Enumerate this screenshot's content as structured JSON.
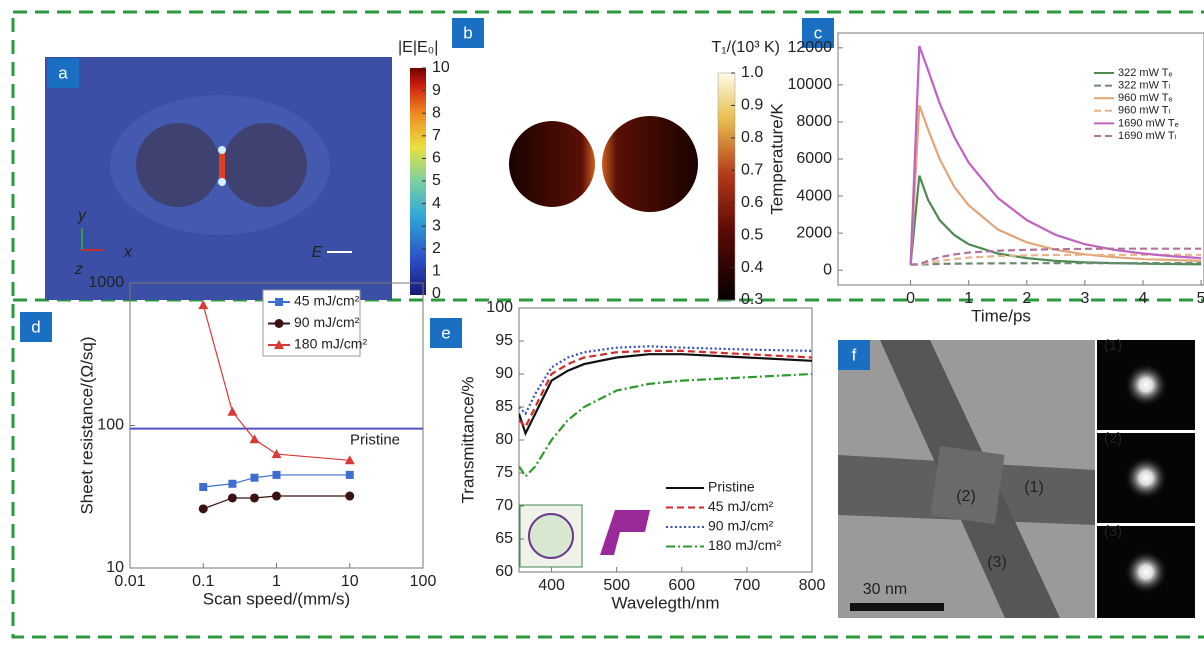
{
  "panels": {
    "a": {
      "label": "a",
      "colorbar": {
        "title": "|E|E₀|",
        "lim": [
          0,
          10
        ],
        "ticks": [
          0,
          1,
          2,
          3,
          4,
          5,
          6,
          7,
          8,
          9,
          10
        ]
      },
      "axes": [
        "y",
        "x",
        "z"
      ],
      "field": "E"
    },
    "b": {
      "label": "b",
      "colorbar": {
        "title": "T₁/(10³ K)",
        "lim": [
          0.3,
          1
        ],
        "ticks": [
          0.3,
          0.4,
          0.5,
          0.6,
          0.7,
          0.8,
          0.9,
          {
            "value": 1,
            "label": "1.0"
          }
        ]
      }
    },
    "f": {
      "label": "f",
      "annotations": [
        "(2)",
        "(1)",
        "(3)"
      ],
      "scale_bar": "30 nm",
      "diffraction_labels": [
        "(1)",
        "(2)",
        "(3)"
      ]
    }
  },
  "chart_data": [
    {
      "type": "line",
      "panel": "c",
      "xlabel": "Time/ps",
      "ylabel": "Temperature/K",
      "x": [
        0,
        0.15,
        0.3,
        0.5,
        0.75,
        1,
        1.5,
        2,
        2.5,
        3,
        3.5,
        4,
        4.5,
        5
      ],
      "xlim": [
        -1.25,
        5.05
      ],
      "ylim": [
        -800,
        12800
      ],
      "xticks": [
        0,
        1,
        2,
        3,
        4,
        5
      ],
      "yticks": [
        0,
        2000,
        4000,
        6000,
        8000,
        10000,
        12000
      ],
      "legend": "upper right",
      "series": [
        {
          "name": "322 mW Tₑ",
          "color": "#4d8a52",
          "dash": "solid",
          "values": [
            300,
            5100,
            3800,
            2700,
            1900,
            1400,
            900,
            650,
            500,
            420,
            380,
            350,
            330,
            320
          ]
        },
        {
          "name": "322 mW Tₗ",
          "color": "#6f8a73",
          "dash": "dashed",
          "values": [
            300,
            300,
            320,
            340,
            350,
            360,
            370,
            375,
            380,
            380,
            380,
            380,
            380,
            380
          ]
        },
        {
          "name": "960 mW Tₑ",
          "color": "#e2a577",
          "dash": "solid",
          "values": [
            300,
            8900,
            7600,
            6000,
            4500,
            3500,
            2200,
            1500,
            1100,
            850,
            700,
            600,
            550,
            500
          ]
        },
        {
          "name": "960 mW Tₗ",
          "color": "#e6b48c",
          "dash": "dashed",
          "values": [
            300,
            310,
            400,
            500,
            600,
            680,
            760,
            800,
            820,
            830,
            830,
            830,
            830,
            830
          ]
        },
        {
          "name": "1690 mW Tₑ",
          "color": "#c062c0",
          "dash": "solid",
          "values": [
            300,
            12100,
            10800,
            9000,
            7200,
            5800,
            3900,
            2700,
            1900,
            1400,
            1100,
            900,
            750,
            650
          ]
        },
        {
          "name": "1690 mW Tₗ",
          "color": "#b0739a",
          "dash": "dashed",
          "values": [
            300,
            330,
            500,
            700,
            850,
            950,
            1050,
            1100,
            1130,
            1150,
            1160,
            1160,
            1160,
            1160
          ]
        }
      ]
    },
    {
      "type": "line",
      "panel": "d",
      "xlabel": "Scan speed/(mm/s)",
      "ylabel": "Sheet resistance/(Ω/sq)",
      "log_x": true,
      "log_y": true,
      "x": [
        0.1,
        0.25,
        0.5,
        1,
        10
      ],
      "xlim": [
        0.01,
        100
      ],
      "ylim": [
        10,
        1000
      ],
      "xticks": [
        0.01,
        0.1,
        1,
        10,
        100
      ],
      "yticks": [
        10,
        100,
        1000
      ],
      "legend": "upper right",
      "reference_line": {
        "value": 95,
        "label": "Pristine",
        "color": "#5252c8"
      },
      "series": [
        {
          "name": "45 mJ/cm²",
          "color": "#3d6fd0",
          "marker": "square",
          "dash": "solid",
          "values": [
            37,
            39,
            43,
            45,
            45
          ]
        },
        {
          "name": "90 mJ/cm²",
          "color": "#3a1212",
          "marker": "circle",
          "dash": "solid",
          "values": [
            26,
            31,
            31,
            32,
            32
          ]
        },
        {
          "name": "180 mJ/cm²",
          "color": "#d83a3a",
          "marker": "triangle",
          "dash": "solid",
          "values": [
            700,
            125,
            80,
            63,
            57
          ]
        }
      ]
    },
    {
      "type": "line",
      "panel": "e",
      "xlabel": "Wavelegth/nm",
      "ylabel": "Transmittance/%",
      "x": [
        350,
        360,
        375,
        400,
        425,
        450,
        500,
        550,
        600,
        700,
        800
      ],
      "xlim": [
        350,
        800
      ],
      "ylim": [
        60,
        100
      ],
      "xticks": [
        400,
        500,
        600,
        700,
        800
      ],
      "yticks": [
        60,
        65,
        70,
        75,
        80,
        85,
        90,
        95,
        100
      ],
      "legend": "lower right",
      "series": [
        {
          "name": "Pristine",
          "color": "#111111",
          "dash": "solid",
          "values": [
            84,
            81,
            84,
            89,
            90.5,
            91.5,
            92.5,
            93,
            93,
            92.5,
            92
          ]
        },
        {
          "name": "45 mJ/cm²",
          "color": "#d02a2a",
          "dash": "dashed",
          "values": [
            83,
            82,
            85,
            90,
            91.5,
            92.5,
            93.3,
            93.5,
            93.5,
            93,
            92.5
          ]
        },
        {
          "name": "90 mJ/cm²",
          "color": "#3a4fc0",
          "dash": "dotted",
          "values": [
            85,
            84,
            87,
            91,
            92.5,
            93.3,
            94,
            94.2,
            94,
            93.7,
            93.5
          ]
        },
        {
          "name": "180 mJ/cm²",
          "color": "#2e9a2e",
          "dash": "dashdot",
          "values": [
            76,
            74.5,
            76,
            80,
            83,
            85,
            87.5,
            88.5,
            89,
            89.5,
            90
          ]
        }
      ]
    }
  ]
}
